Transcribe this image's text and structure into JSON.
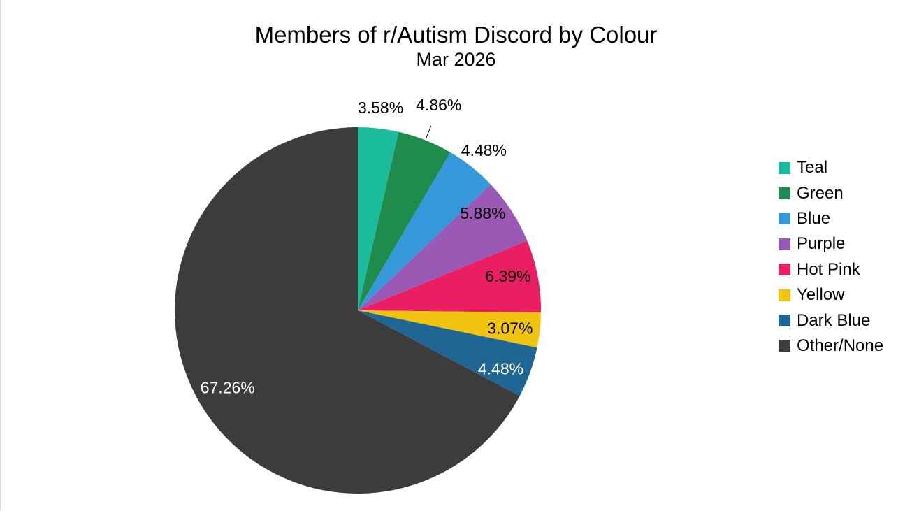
{
  "chart_data": {
    "type": "pie",
    "title": "Members of r/Autism Discord by Colour",
    "subtitle": "Mar 2026",
    "legend_position": "right",
    "slices": [
      {
        "label": "Teal",
        "value": 3.58,
        "display": "3.58%",
        "color": "#1abc9c",
        "label_color": "#000000",
        "label_place": "outside"
      },
      {
        "label": "Green",
        "value": 4.86,
        "display": "4.86%",
        "color": "#1f8b4c",
        "label_color": "#000000",
        "label_place": "outside-leader"
      },
      {
        "label": "Blue",
        "value": 4.48,
        "display": "4.48%",
        "color": "#3498db",
        "label_color": "#000000",
        "label_place": "outside"
      },
      {
        "label": "Purple",
        "value": 5.88,
        "display": "5.88%",
        "color": "#9b59b6",
        "label_color": "#000000",
        "label_place": "inside"
      },
      {
        "label": "Hot Pink",
        "value": 6.39,
        "display": "6.39%",
        "color": "#e91e63",
        "label_color": "#000000",
        "label_place": "inside"
      },
      {
        "label": "Yellow",
        "value": 3.07,
        "display": "3.07%",
        "color": "#f1c40f",
        "label_color": "#000000",
        "label_place": "inside"
      },
      {
        "label": "Dark Blue",
        "value": 4.48,
        "display": "4.48%",
        "color": "#206694",
        "label_color": "#ffffff",
        "label_place": "inside"
      },
      {
        "label": "Other/None",
        "value": 67.26,
        "display": "67.26%",
        "color": "#3c3c3c",
        "label_color": "#ffffff",
        "label_place": "inside"
      }
    ]
  }
}
